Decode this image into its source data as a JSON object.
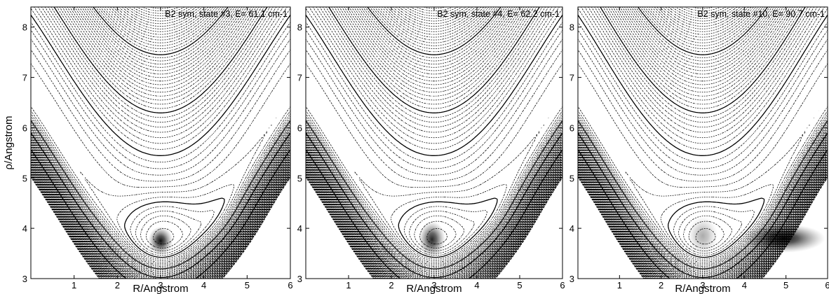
{
  "chart_data": [
    {
      "type": "contour",
      "title": "B2 sym, state #3, E= 61.1 cm-1",
      "xlabel": "R/Angstrom",
      "ylabel": "ρ/Angstrom",
      "xlim": [
        0,
        6
      ],
      "ylim": [
        3,
        8.4
      ],
      "xticks": [
        "1",
        "2",
        "3",
        "4",
        "5",
        "6"
      ],
      "yticks": [
        "3",
        "4",
        "5",
        "6",
        "7",
        "8"
      ],
      "density_peaks": [
        {
          "x": 3.0,
          "y": 3.75,
          "sx": 0.11,
          "sy": 0.11,
          "amp": 1.0
        }
      ]
    },
    {
      "type": "contour",
      "title": "B2 sym, state #4, E= 62.2 cm-1",
      "xlabel": "R/Angstrom",
      "ylabel": "",
      "xlim": [
        0,
        6
      ],
      "ylim": [
        3,
        8.4
      ],
      "xticks": [
        "1",
        "2",
        "3",
        "4",
        "5",
        "6"
      ],
      "yticks": [
        "3",
        "4",
        "5",
        "6",
        "7",
        "8"
      ],
      "density_peaks": [
        {
          "x": 2.95,
          "y": 3.78,
          "sx": 0.12,
          "sy": 0.14,
          "amp": 0.9
        }
      ]
    },
    {
      "type": "contour",
      "title": "B2 sym, state #10, E= 90.7 cm-1",
      "xlabel": "R/Angstrom",
      "ylabel": "",
      "xlim": [
        0,
        6
      ],
      "ylim": [
        3,
        8.4
      ],
      "xticks": [
        "1",
        "2",
        "3",
        "4",
        "5",
        "6"
      ],
      "yticks": [
        "3",
        "4",
        "5",
        "6",
        "7",
        "8"
      ],
      "density_peaks": [
        {
          "x": 4.95,
          "y": 3.8,
          "sx": 0.38,
          "sy": 0.11,
          "amp": 1.0
        },
        {
          "x": 3.0,
          "y": 3.85,
          "sx": 0.14,
          "sy": 0.15,
          "amp": 0.35
        }
      ]
    }
  ]
}
